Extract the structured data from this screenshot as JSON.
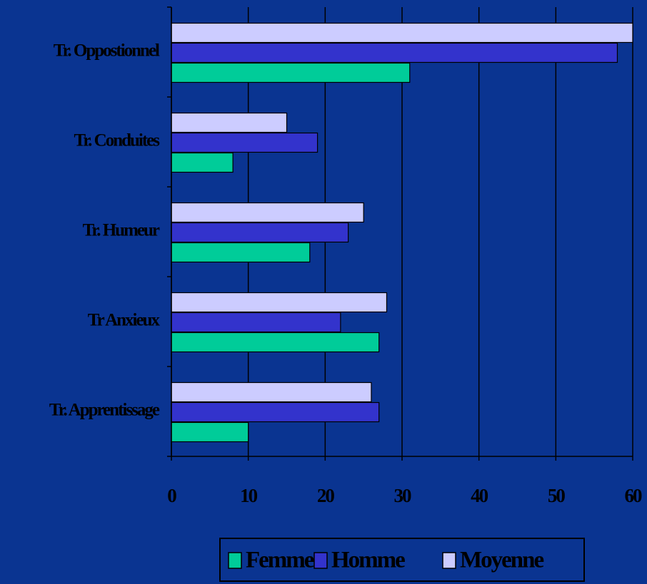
{
  "chart_data": {
    "type": "bar",
    "orientation": "horizontal",
    "categories": [
      "Tr. Oppostionnel",
      "Tr. Conduites",
      "Tr. Humeur",
      "Tr Anxieux",
      "Tr. Apprentissage"
    ],
    "series": [
      {
        "name": "Femme",
        "color": "#00cc99",
        "values": [
          31,
          8,
          18,
          27,
          10
        ]
      },
      {
        "name": "Homme",
        "color": "#3333cc",
        "values": [
          58,
          19,
          23,
          22,
          27
        ]
      },
      {
        "name": "Moyenne",
        "color": "#ccccff",
        "values": [
          60,
          15,
          25,
          28,
          26
        ]
      }
    ],
    "xlim": [
      0,
      60
    ],
    "xticks": [
      0,
      10,
      20,
      30,
      40,
      50,
      60
    ],
    "grid": true,
    "legend": "bottom"
  }
}
